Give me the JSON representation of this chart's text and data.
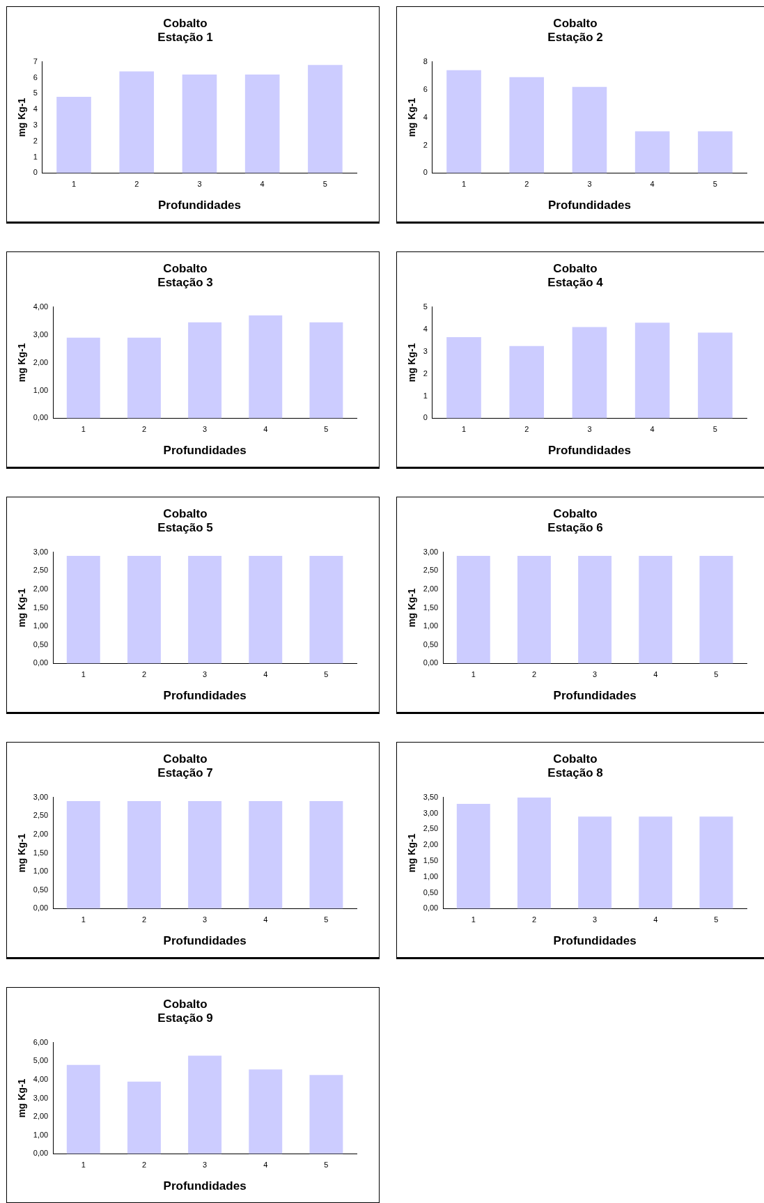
{
  "chart_data": [
    {
      "type": "bar",
      "title": "Cobalto",
      "subtitle": "Estação 1",
      "xlabel": "Profundidades",
      "ylabel": "mg Kg-1",
      "categories": [
        "1",
        "2",
        "3",
        "4",
        "5"
      ],
      "values": [
        4.8,
        6.4,
        6.2,
        6.2,
        6.8
      ],
      "color": "#ccccff",
      "ylim": [
        0,
        7
      ],
      "yticks": [
        0,
        1,
        2,
        3,
        4,
        5,
        6,
        7
      ],
      "grid": false,
      "legend": false
    },
    {
      "type": "bar",
      "title": "Cobalto",
      "subtitle": "Estação 2",
      "xlabel": "Profundidades",
      "ylabel": "mg Kg-1",
      "categories": [
        "1",
        "2",
        "3",
        "4",
        "5"
      ],
      "values": [
        7.4,
        6.9,
        6.2,
        3.0,
        3.0
      ],
      "color": "#ccccff",
      "ylim": [
        0,
        8
      ],
      "yticks": [
        0,
        2,
        4,
        6,
        8
      ],
      "grid": false,
      "legend": false
    },
    {
      "type": "bar",
      "title": "Cobalto",
      "subtitle": "Estação 3",
      "xlabel": "Profundidades",
      "ylabel": "mg Kg-1",
      "categories": [
        "1",
        "2",
        "3",
        "4",
        "5"
      ],
      "values": [
        2.9,
        2.9,
        3.45,
        3.7,
        3.45
      ],
      "color": "#ccccff",
      "ylim": [
        0,
        4
      ],
      "yticks": [
        {
          "value": 0,
          "label": "0,00"
        },
        {
          "value": 1,
          "label": "1,00"
        },
        {
          "value": 2,
          "label": "2,00"
        },
        {
          "value": 3,
          "label": "3,00"
        },
        {
          "value": 4,
          "label": "4,00"
        }
      ],
      "grid": false,
      "legend": false
    },
    {
      "type": "bar",
      "title": "Cobalto",
      "subtitle": "Estação 4",
      "xlabel": "Profundidades",
      "ylabel": "mg Kg-1",
      "categories": [
        "1",
        "2",
        "3",
        "4",
        "5"
      ],
      "values": [
        3.65,
        3.25,
        4.1,
        4.3,
        3.85
      ],
      "color": "#ccccff",
      "ylim": [
        0,
        5
      ],
      "yticks": [
        0,
        1,
        2,
        3,
        4,
        5
      ],
      "grid": false,
      "legend": false
    },
    {
      "type": "bar",
      "title": "Cobalto",
      "subtitle": "Estação 5",
      "xlabel": "Profundidades",
      "ylabel": "mg Kg-1",
      "categories": [
        "1",
        "2",
        "3",
        "4",
        "5"
      ],
      "values": [
        2.9,
        2.9,
        2.9,
        2.9,
        2.9
      ],
      "color": "#ccccff",
      "ylim": [
        0,
        3
      ],
      "yticks": [
        {
          "value": 0,
          "label": "0,00"
        },
        {
          "value": 0.5,
          "label": "0,50"
        },
        {
          "value": 1,
          "label": "1,00"
        },
        {
          "value": 1.5,
          "label": "1,50"
        },
        {
          "value": 2,
          "label": "2,00"
        },
        {
          "value": 2.5,
          "label": "2,50"
        },
        {
          "value": 3,
          "label": "3,00"
        }
      ],
      "grid": false,
      "legend": false
    },
    {
      "type": "bar",
      "title": "Cobalto",
      "subtitle": "Estação 6",
      "xlabel": "Profundidades",
      "ylabel": "mg Kg-1",
      "categories": [
        "1",
        "2",
        "3",
        "4",
        "5"
      ],
      "values": [
        2.9,
        2.9,
        2.9,
        2.9,
        2.9
      ],
      "color": "#ccccff",
      "ylim": [
        0,
        3
      ],
      "yticks": [
        {
          "value": 0,
          "label": "0,00"
        },
        {
          "value": 0.5,
          "label": "0,50"
        },
        {
          "value": 1,
          "label": "1,00"
        },
        {
          "value": 1.5,
          "label": "1,50"
        },
        {
          "value": 2,
          "label": "2,00"
        },
        {
          "value": 2.5,
          "label": "2,50"
        },
        {
          "value": 3,
          "label": "3,00"
        }
      ],
      "grid": false,
      "legend": false
    },
    {
      "type": "bar",
      "title": "Cobalto",
      "subtitle": "Estação 7",
      "xlabel": "Profundidades",
      "ylabel": "mg Kg-1",
      "categories": [
        "1",
        "2",
        "3",
        "4",
        "5"
      ],
      "values": [
        2.9,
        2.9,
        2.9,
        2.9,
        2.9
      ],
      "color": "#ccccff",
      "ylim": [
        0,
        3
      ],
      "yticks": [
        {
          "value": 0,
          "label": "0,00"
        },
        {
          "value": 0.5,
          "label": "0,50"
        },
        {
          "value": 1,
          "label": "1,00"
        },
        {
          "value": 1.5,
          "label": "1,50"
        },
        {
          "value": 2,
          "label": "2,00"
        },
        {
          "value": 2.5,
          "label": "2,50"
        },
        {
          "value": 3,
          "label": "3,00"
        }
      ],
      "grid": false,
      "legend": false
    },
    {
      "type": "bar",
      "title": "Cobalto",
      "subtitle": "Estação 8",
      "xlabel": "Profundidades",
      "ylabel": "mg Kg-1",
      "categories": [
        "1",
        "2",
        "3",
        "4",
        "5"
      ],
      "values": [
        3.3,
        3.5,
        2.9,
        2.9,
        2.9
      ],
      "color": "#ccccff",
      "ylim": [
        0,
        3.5
      ],
      "yticks": [
        {
          "value": 0,
          "label": "0,00"
        },
        {
          "value": 0.5,
          "label": "0,50"
        },
        {
          "value": 1,
          "label": "1,00"
        },
        {
          "value": 1.5,
          "label": "1,50"
        },
        {
          "value": 2,
          "label": "2,00"
        },
        {
          "value": 2.5,
          "label": "2,50"
        },
        {
          "value": 3,
          "label": "3,00"
        },
        {
          "value": 3.5,
          "label": "3,50"
        }
      ],
      "grid": false,
      "legend": false
    },
    {
      "type": "bar",
      "title": "Cobalto",
      "subtitle": "Estação 9",
      "xlabel": "Profundidades",
      "ylabel": "mg Kg-1",
      "categories": [
        "1",
        "2",
        "3",
        "4",
        "5"
      ],
      "values": [
        4.8,
        3.9,
        5.3,
        4.55,
        4.25
      ],
      "color": "#ccccff",
      "ylim": [
        0,
        6
      ],
      "yticks": [
        {
          "value": 0,
          "label": "0,00"
        },
        {
          "value": 1,
          "label": "1,00"
        },
        {
          "value": 2,
          "label": "2,00"
        },
        {
          "value": 3,
          "label": "3,00"
        },
        {
          "value": 4,
          "label": "4,00"
        },
        {
          "value": 5,
          "label": "5,00"
        },
        {
          "value": 6,
          "label": "6,00"
        }
      ],
      "grid": false,
      "legend": false
    }
  ]
}
